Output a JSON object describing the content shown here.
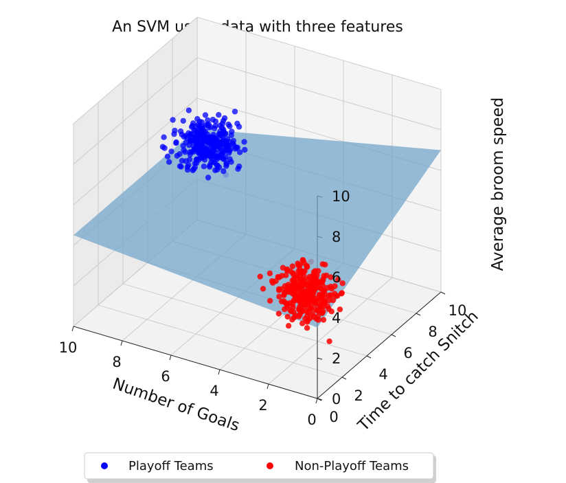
{
  "chart_data": {
    "type": "scatter",
    "projection": "3d",
    "title": "An SVM using data with three features",
    "xlabel": "Number of Goals",
    "ylabel": "Time to catch Snitch",
    "zlabel": "Average broom speed",
    "xlim": [
      0,
      10
    ],
    "ylim": [
      0,
      10
    ],
    "zlim": [
      0,
      10
    ],
    "xticks": [
      "0",
      "2",
      "4",
      "6",
      "8",
      "10"
    ],
    "yticks": [
      "0",
      "2",
      "4",
      "6",
      "8",
      "10"
    ],
    "zticks": [
      "0",
      "2",
      "4",
      "6",
      "8",
      "10"
    ],
    "grid": true,
    "legend": {
      "placement": "bottom-center",
      "ncol": 2
    },
    "series": [
      {
        "name": "Playoff Teams",
        "color": "#0000ff",
        "center": [
          8,
          7,
          6
        ],
        "spread": [
          0.8,
          0.8,
          0.8
        ]
      },
      {
        "name": "Non-Playoff Teams",
        "color": "#ff0000",
        "center": [
          2,
          3,
          3
        ],
        "spread": [
          0.8,
          0.8,
          0.8
        ]
      }
    ],
    "decision_plane": {
      "color": "#6fa3c9",
      "z_at_corners": {
        "x0_y0": 3.5,
        "x10_y0": 4.5,
        "x0_y10": 7.0,
        "x10_y10": 4.5
      }
    }
  }
}
